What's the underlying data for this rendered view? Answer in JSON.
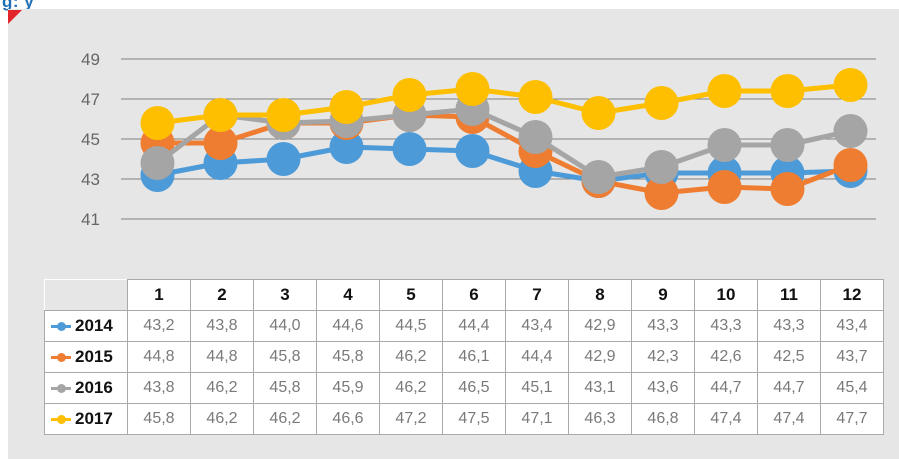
{
  "header": {
    "fragment": "g: y"
  },
  "colors": {
    "accent": "#e2242b",
    "panel": "#e6e6e6"
  },
  "chart_data": {
    "type": "line",
    "categories": [
      "1",
      "2",
      "3",
      "4",
      "5",
      "6",
      "7",
      "8",
      "9",
      "10",
      "11",
      "12"
    ],
    "ylim": [
      41,
      49
    ],
    "yticks": [
      "41",
      "43",
      "45",
      "47",
      "49"
    ],
    "grid": true,
    "legend": "table-left",
    "series": [
      {
        "name": "2014",
        "color": "#4d9ad8",
        "values": [
          43.2,
          43.8,
          44.0,
          44.6,
          44.5,
          44.4,
          43.4,
          42.9,
          43.3,
          43.3,
          43.3,
          43.4
        ],
        "labels": [
          "43,2",
          "43,8",
          "44,0",
          "44,6",
          "44,5",
          "44,4",
          "43,4",
          "42,9",
          "43,3",
          "43,3",
          "43,3",
          "43,4"
        ]
      },
      {
        "name": "2015",
        "color": "#ee7d31",
        "values": [
          44.8,
          44.8,
          45.8,
          45.8,
          46.2,
          46.1,
          44.4,
          42.9,
          42.3,
          42.6,
          42.5,
          43.7
        ],
        "labels": [
          "44,8",
          "44,8",
          "45,8",
          "45,8",
          "46,2",
          "46,1",
          "44,4",
          "42,9",
          "42,3",
          "42,6",
          "42,5",
          "43,7"
        ]
      },
      {
        "name": "2016",
        "color": "#a5a5a5",
        "values": [
          43.8,
          46.2,
          45.8,
          45.9,
          46.2,
          46.5,
          45.1,
          43.1,
          43.6,
          44.7,
          44.7,
          45.4
        ],
        "labels": [
          "43,8",
          "46,2",
          "45,8",
          "45,9",
          "46,2",
          "46,5",
          "45,1",
          "43,1",
          "43,6",
          "44,7",
          "44,7",
          "45,4"
        ]
      },
      {
        "name": "2017",
        "color": "#fdbf00",
        "values": [
          45.8,
          46.2,
          46.2,
          46.6,
          47.2,
          47.5,
          47.1,
          46.3,
          46.8,
          47.4,
          47.4,
          47.7
        ],
        "labels": [
          "45,8",
          "46,2",
          "46,2",
          "46,6",
          "47,2",
          "47,5",
          "47,1",
          "46,3",
          "46,8",
          "47,4",
          "47,4",
          "47,7"
        ]
      }
    ]
  }
}
